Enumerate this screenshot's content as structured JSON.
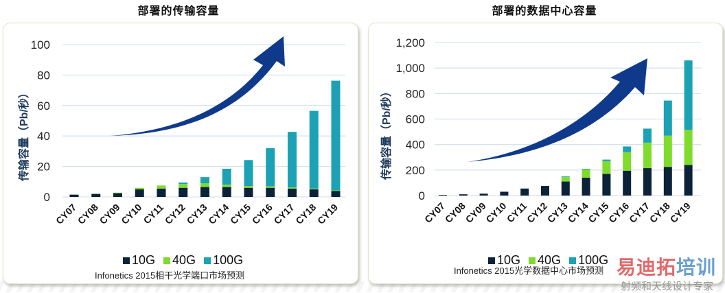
{
  "charts_meta": {
    "left": {
      "title": "部署的传输容量",
      "ylabel": "传输容量（Pb/秒）",
      "source": "Infonetics 2015相干光学端口市场预测"
    },
    "right": {
      "title": "部署的数据中心容量",
      "ylabel": "传输容量（Pb/秒）",
      "source": "Infonetics 2015光学数据中心市场预测"
    }
  },
  "legend": [
    {
      "label": "10G",
      "color": "#0b2239"
    },
    {
      "label": "40G",
      "color": "#80dc2c"
    },
    {
      "label": "100G",
      "color": "#1ba2b4"
    }
  ],
  "watermark": {
    "main_a": "易迪拓",
    "main_b": "培训",
    "sub": "射频和天线设计专家"
  },
  "colors": {
    "series_10g": "#0b2239",
    "series_40g": "#80dc2c",
    "series_100g": "#1ba2b4",
    "arrow": "#0f3a8c",
    "gridline": "#d6e3ee",
    "panel_border": "#e3e3c4"
  },
  "chart_data": [
    {
      "type": "bar",
      "stacked": true,
      "title": "部署的传输容量",
      "xlabel": "",
      "ylabel": "传输容量（Pb/秒）",
      "ylim": [
        0,
        100
      ],
      "yticks": [
        0,
        20,
        40,
        60,
        80,
        100
      ],
      "ytick_labels": [
        "0",
        "20",
        "40",
        "60",
        "80",
        "100"
      ],
      "grid": true,
      "legend_position": "bottom",
      "annotation": "upward trend arrow",
      "source": "Infonetics 2015相干光学端口市场预测",
      "categories": [
        "CY07",
        "CY08",
        "CY09",
        "CY10",
        "CY11",
        "CY12",
        "CY13",
        "CY14",
        "CY15",
        "CY16",
        "CY17",
        "CY18",
        "CY19"
      ],
      "series": [
        {
          "name": "10G",
          "color": "#0b2239",
          "values": [
            1.5,
            2,
            2.5,
            5,
            5.5,
            6,
            6.5,
            6.5,
            6,
            6,
            5.5,
            5,
            4
          ]
        },
        {
          "name": "40G",
          "color": "#80dc2c",
          "values": [
            0,
            0,
            0.3,
            1,
            2,
            2.5,
            2.5,
            1.5,
            1.2,
            1,
            0.7,
            0.5,
            0.3
          ]
        },
        {
          "name": "100G",
          "color": "#1ba2b4",
          "values": [
            0,
            0,
            0,
            0,
            0,
            1,
            4,
            10.5,
            17,
            25,
            36.5,
            51,
            72
          ]
        }
      ]
    },
    {
      "type": "bar",
      "stacked": true,
      "title": "部署的数据中心容量",
      "xlabel": "",
      "ylabel": "传输容量（Pb/秒）",
      "ylim": [
        0,
        1200
      ],
      "yticks": [
        0,
        200,
        400,
        600,
        800,
        1000,
        1200
      ],
      "ytick_labels": [
        "0",
        "200",
        "400",
        "600",
        "800",
        "1,000",
        "1,200"
      ],
      "grid": true,
      "legend_position": "bottom",
      "annotation": "upward trend arrow",
      "source": "Infonetics 2015光学数据中心市场预测",
      "categories": [
        "CY07",
        "CY08",
        "CY09",
        "CY10",
        "CY11",
        "CY12",
        "CY13",
        "CY14",
        "CY15",
        "CY16",
        "CY17",
        "CY18",
        "CY19"
      ],
      "series": [
        {
          "name": "10G",
          "color": "#0b2239",
          "values": [
            5,
            10,
            15,
            30,
            55,
            75,
            110,
            140,
            170,
            195,
            215,
            225,
            240
          ]
        },
        {
          "name": "40G",
          "color": "#80dc2c",
          "values": [
            0,
            0,
            0,
            0,
            0,
            0,
            35,
            65,
            100,
            145,
            200,
            245,
            275
          ]
        },
        {
          "name": "100G",
          "color": "#1ba2b4",
          "values": [
            0,
            0,
            0,
            0,
            0,
            0,
            5,
            5,
            12,
            45,
            110,
            275,
            545
          ]
        }
      ]
    }
  ]
}
